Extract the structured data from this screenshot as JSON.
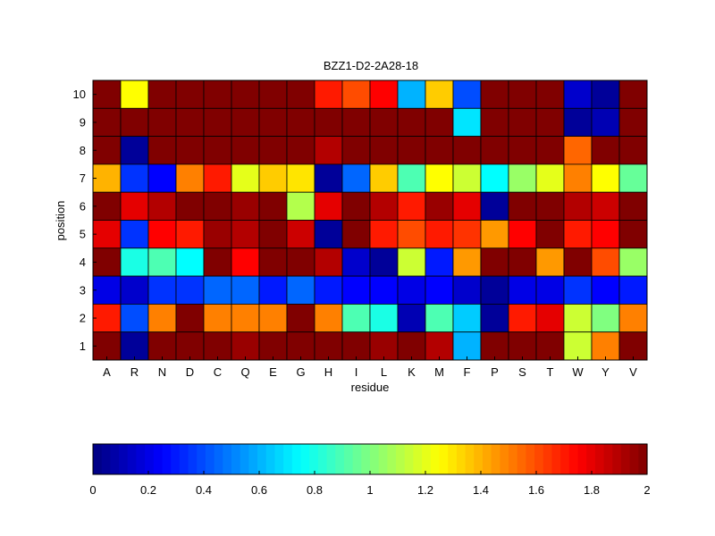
{
  "chart_data": {
    "type": "heatmap",
    "title": "BZZ1-D2-2A28-18",
    "xlabel": "residue",
    "ylabel": "position",
    "x_categories": [
      "A",
      "R",
      "N",
      "D",
      "C",
      "Q",
      "E",
      "G",
      "H",
      "I",
      "L",
      "K",
      "M",
      "F",
      "P",
      "S",
      "T",
      "W",
      "Y",
      "V"
    ],
    "y_categories": [
      "10",
      "9",
      "8",
      "7",
      "6",
      "5",
      "4",
      "3",
      "2",
      "1"
    ],
    "values": [
      [
        2.0,
        1.25,
        2.0,
        2.0,
        2.0,
        2.0,
        2.0,
        2.0,
        1.7,
        1.6,
        1.75,
        0.6,
        1.35,
        0.4,
        2.0,
        2.0,
        2.0,
        0.15,
        0.05,
        2.0
      ],
      [
        2.0,
        2.0,
        2.0,
        2.0,
        2.0,
        2.0,
        2.0,
        2.0,
        2.0,
        2.0,
        2.0,
        2.0,
        2.0,
        0.7,
        2.0,
        2.0,
        2.0,
        0.05,
        0.1,
        2.0
      ],
      [
        2.0,
        0.05,
        2.0,
        2.0,
        2.0,
        2.0,
        2.0,
        2.0,
        1.9,
        2.0,
        2.0,
        2.0,
        2.0,
        2.0,
        2.0,
        2.0,
        2.0,
        1.55,
        2.0,
        2.0
      ],
      [
        1.4,
        0.35,
        0.25,
        1.5,
        1.7,
        1.2,
        1.35,
        1.3,
        0.05,
        0.45,
        1.35,
        0.9,
        1.25,
        1.15,
        0.75,
        1.05,
        1.2,
        1.5,
        1.25,
        0.95
      ],
      [
        2.0,
        1.8,
        1.9,
        2.0,
        2.0,
        1.95,
        2.0,
        1.1,
        1.8,
        2.0,
        1.9,
        1.7,
        1.95,
        1.8,
        0.05,
        2.0,
        2.0,
        1.9,
        1.85,
        2.0
      ],
      [
        1.8,
        0.35,
        1.75,
        1.7,
        1.95,
        1.9,
        2.0,
        1.85,
        0.05,
        2.0,
        1.7,
        1.6,
        1.7,
        1.65,
        1.45,
        1.75,
        2.0,
        1.7,
        1.75,
        2.0
      ],
      [
        2.0,
        0.8,
        0.9,
        0.75,
        2.0,
        1.75,
        2.0,
        2.0,
        1.9,
        0.15,
        0.05,
        1.15,
        0.3,
        1.45,
        2.0,
        2.0,
        1.45,
        2.0,
        1.6,
        1.05
      ],
      [
        0.2,
        0.15,
        0.35,
        0.35,
        0.45,
        0.45,
        0.3,
        0.45,
        0.3,
        0.25,
        0.25,
        0.2,
        0.25,
        0.15,
        0.05,
        0.2,
        0.2,
        0.35,
        0.25,
        0.3
      ],
      [
        1.7,
        0.4,
        1.5,
        2.0,
        1.5,
        1.5,
        1.5,
        2.0,
        1.5,
        0.9,
        0.8,
        0.1,
        0.9,
        0.65,
        0.05,
        1.7,
        1.8,
        1.15,
        1.0,
        1.5
      ],
      [
        2.0,
        0.05,
        2.0,
        2.0,
        2.0,
        1.95,
        2.0,
        2.0,
        2.0,
        2.0,
        1.95,
        2.0,
        1.9,
        0.6,
        2.0,
        2.0,
        2.0,
        1.15,
        1.5,
        2.0
      ]
    ],
    "colorbar": {
      "min": 0,
      "max": 2,
      "ticks": [
        "0",
        "0.2",
        "0.4",
        "0.6",
        "0.8",
        "1",
        "1.2",
        "1.4",
        "1.6",
        "1.8",
        "2"
      ],
      "colormap": "jet"
    }
  }
}
